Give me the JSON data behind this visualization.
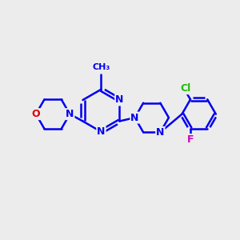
{
  "background_color": "#ececec",
  "bond_color": "#0000ee",
  "bond_width": 1.8,
  "atom_colors": {
    "N": "#0000ee",
    "O": "#dd0000",
    "Cl": "#22bb00",
    "F": "#cc00bb",
    "C": "#000000"
  },
  "figsize": [
    3.0,
    3.0
  ],
  "dpi": 100,
  "xlim": [
    0,
    10
  ],
  "ylim": [
    0,
    10
  ]
}
